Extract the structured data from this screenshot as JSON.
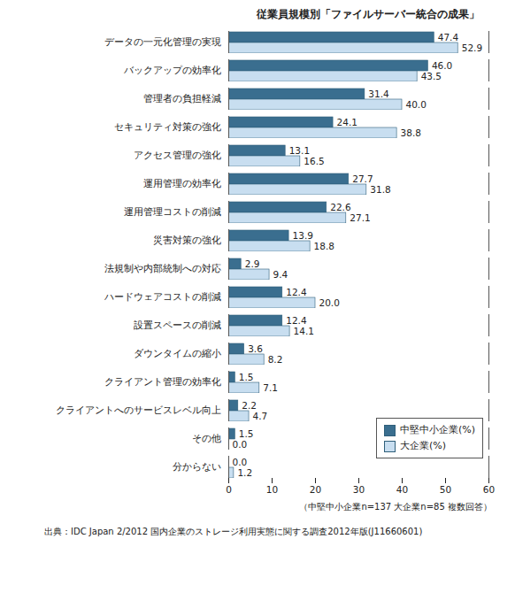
{
  "chart_data": {
    "type": "bar",
    "orientation": "horizontal",
    "title": "従業員規模別「ファイルサーバー統合の成果」",
    "subtitle": "（中堅中小企業n=137 大企業n=85 複数回答）",
    "source": "出典：IDC Japan 2/2012 国内企業のストレージ利用実態に関する調査2012年版(J11660601)",
    "categories": [
      "データの一元化管理の実現",
      "バックアップの効率化",
      "管理者の負担軽減",
      "セキュリティ対策の強化",
      "アクセス管理の強化",
      "運用管理の効率化",
      "運用管理コストの削減",
      "災害対策の強化",
      "法規制や内部統制への対応",
      "ハードウェアコストの削減",
      "設置スペースの削減",
      "ダウンタイムの縮小",
      "クライアント管理の効率化",
      "クライアントへのサービスレベル向上",
      "その他",
      "分からない"
    ],
    "series": [
      {
        "name": "中堅中小企業(%)",
        "color": "#3a6e8f",
        "values": [
          47.4,
          46.0,
          31.4,
          24.1,
          13.1,
          27.7,
          22.6,
          13.9,
          2.9,
          12.4,
          12.4,
          3.6,
          1.5,
          2.2,
          1.5,
          0.0
        ],
        "value_labels": [
          "47.4",
          "46.0",
          "31.4",
          "24.1",
          "13.1",
          "27.7",
          "22.6",
          "13.9",
          "2.9",
          "12.4",
          "12.4",
          "3.6",
          "1.5",
          "2.2",
          "1.5",
          "0.0"
        ]
      },
      {
        "name": "大企業(%)",
        "color": "#c8def0",
        "values": [
          52.9,
          43.5,
          40.0,
          38.8,
          16.5,
          31.8,
          27.1,
          18.8,
          9.4,
          20.0,
          14.1,
          8.2,
          7.1,
          4.7,
          0.0,
          1.2
        ],
        "value_labels": [
          "52.9",
          "43.5",
          "40.0",
          "38.8",
          "16.5",
          "31.8",
          "27.1",
          "18.8",
          "9.4",
          "20.0",
          "14.1",
          "8.2",
          "7.1",
          "4.7",
          "0.0",
          "1.2"
        ]
      }
    ],
    "xlim": [
      0,
      60
    ],
    "xticks": [
      0,
      10,
      20,
      30,
      40,
      50,
      60
    ],
    "data_labels": true,
    "legend": "lower right",
    "grid": false
  }
}
